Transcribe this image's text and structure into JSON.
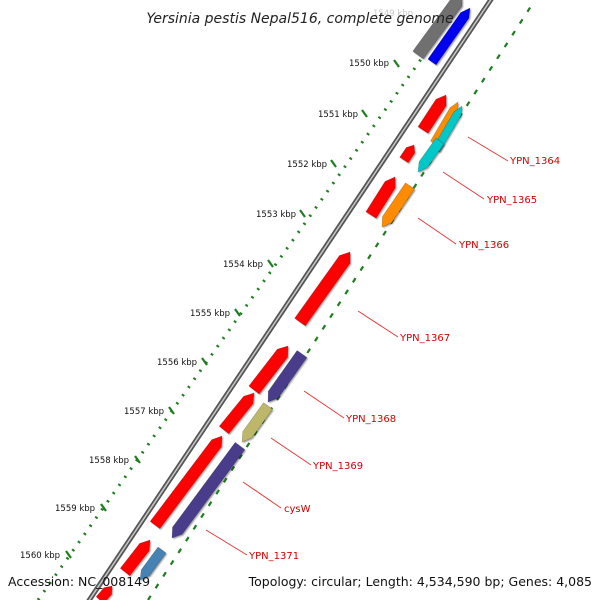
{
  "title": "Yersinia pestis Nepal516, complete genome",
  "footer": {
    "accession": "Accession: NC_008149",
    "summary": "Topology: circular; Length: 4,534,590 bp; Genes: 4,085"
  },
  "ruler": {
    "faded_label": "1549 kbp",
    "labels": [
      "1550 kbp",
      "1551 kbp",
      "1552 kbp",
      "1553 kbp",
      "1554 kbp",
      "1555 kbp",
      "1556 kbp",
      "1557 kbp",
      "1558 kbp",
      "1559 kbp",
      "1560 kbp"
    ]
  },
  "gene_labels": [
    "YPN_1364",
    "YPN_1365",
    "YPN_1366",
    "YPN_1367",
    "YPN_1368",
    "YPN_1369",
    "cysW",
    "YPN_1371"
  ],
  "colors": {
    "backbone": "#7a7a7a",
    "ruler_dots": "#1e7d1e",
    "red": "#ff0000",
    "orange": "#ff8c00",
    "cyan": "#00c8c8",
    "navy": "#483d8b",
    "khaki": "#bdb76b",
    "steelblue": "#4682b4",
    "blue": "#0000ee",
    "gray": "#707070",
    "label": "#d40000"
  }
}
